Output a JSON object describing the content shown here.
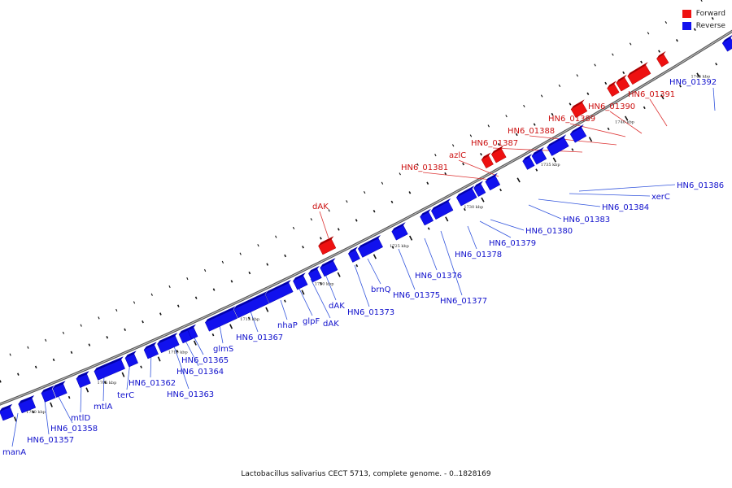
{
  "legend": [
    {
      "label": "Forward",
      "color": "#ee1111"
    },
    {
      "label": "Reverse",
      "color": "#1111ee"
    }
  ],
  "caption": "Lactobacillus salivarius CECT 5713, complete genome. - 0..1828169",
  "colors": {
    "forward": "#ee1111",
    "reverse": "#1111ee",
    "backbone": "#777777",
    "leader": "#3355dd",
    "leader_fwd": "#dd3333"
  },
  "kbp_labels": [
    "1700 kbp",
    "1705 kbp",
    "1710 kbp",
    "1715 kbp",
    "1720 kbp",
    "1725 kbp",
    "1730 kbp",
    "1735 kbp",
    "1740 kbp",
    "1745 kbp"
  ],
  "forward_labels": [
    "dAK",
    "HN6_01381",
    "azlC",
    "HN6_01387",
    "HN6_01388",
    "HN6_01389",
    "HN6_01390",
    "HN6_01391"
  ],
  "reverse_labels": [
    "HN6_01392",
    "HN6_01386",
    "xerC",
    "HN6_01384",
    "HN6_01383",
    "HN6_01380",
    "HN6_01379",
    "HN6_01378",
    "HN6_01377",
    "HN6_01376",
    "HN6_01375",
    "HN6_01373",
    "brnQ",
    "dAK",
    "dAK",
    "glpF",
    "nhaP",
    "HN6_01367",
    "glmS",
    "HN6_01365",
    "HN6_01364",
    "HN6_01363",
    "HN6_01362",
    "terC",
    "mtlA",
    "mtlD",
    "HN6_01358",
    "HN6_01357",
    "manA"
  ]
}
